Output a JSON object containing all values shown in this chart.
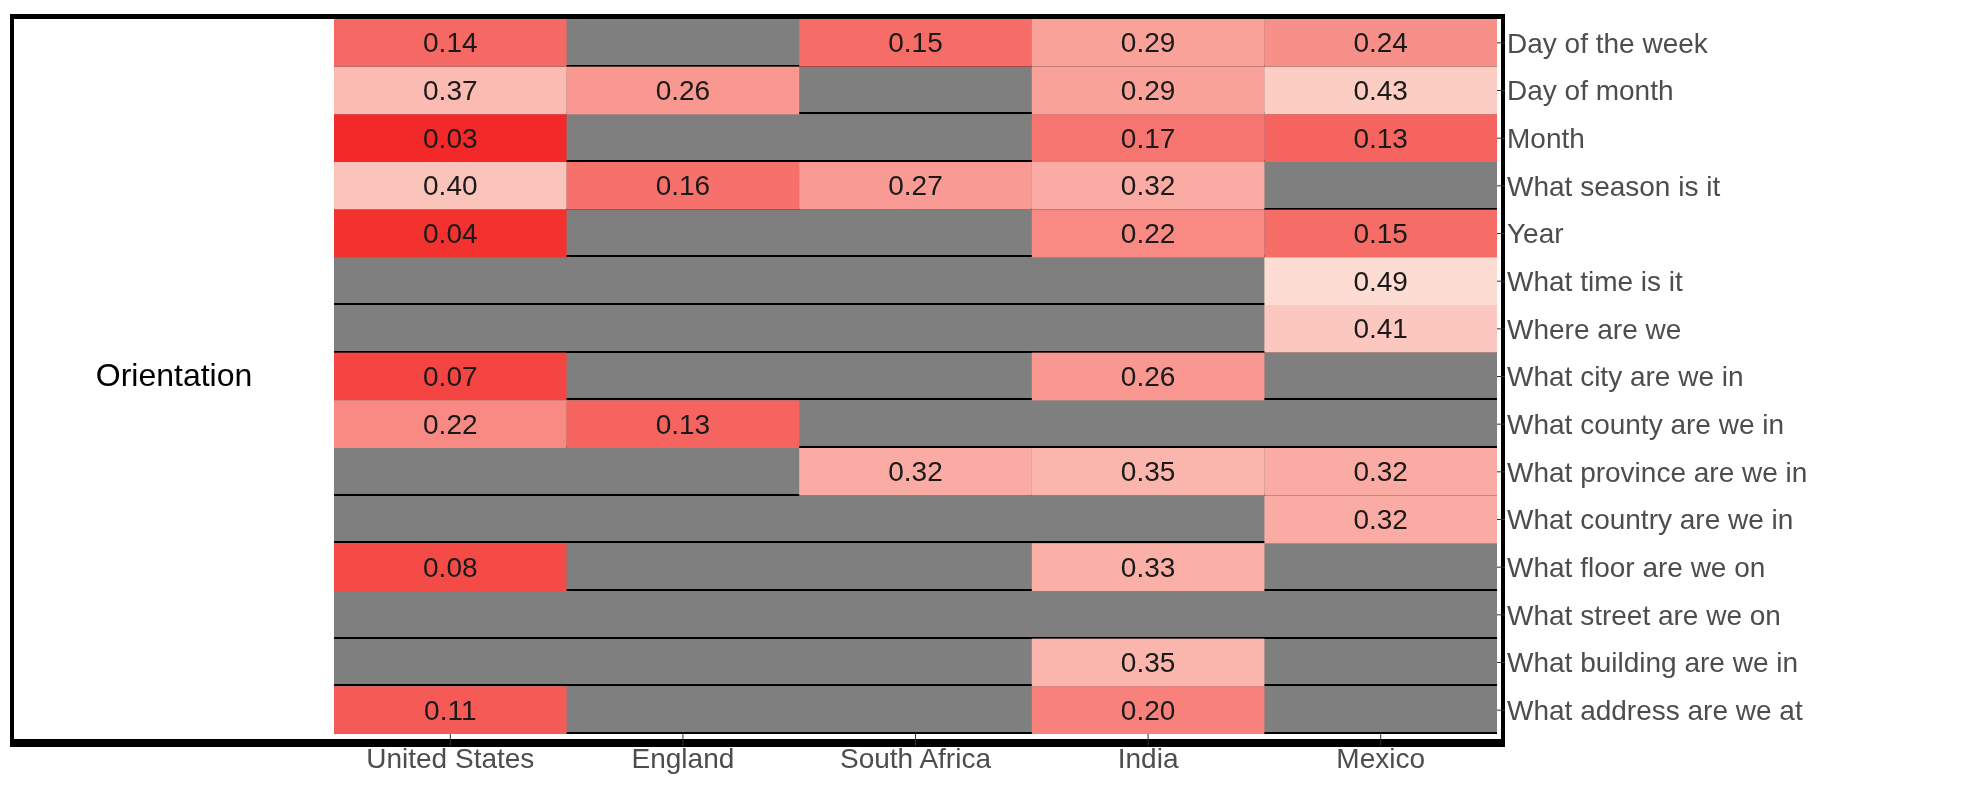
{
  "chart_data": {
    "type": "heatmap",
    "ylabel": "Orientation",
    "categories": [
      "United States",
      "England",
      "South Africa",
      "India",
      "Mexico"
    ],
    "y_categories": [
      "Day of the week",
      "Day of month",
      "Month",
      "What season is it",
      "Year",
      "What time is it",
      "Where are we",
      "What city are we in",
      "What county are we in",
      "What province are we in",
      "What country are we in",
      "What floor are we on",
      "What street are we on",
      "What building are we in",
      "What address are we at"
    ],
    "cells": [
      [
        0.14,
        null,
        0.15,
        0.29,
        0.24
      ],
      [
        0.37,
        0.26,
        null,
        0.29,
        0.43
      ],
      [
        0.03,
        null,
        null,
        0.17,
        0.13
      ],
      [
        0.4,
        0.16,
        0.27,
        0.32,
        null
      ],
      [
        0.04,
        null,
        null,
        0.22,
        0.15
      ],
      [
        null,
        null,
        null,
        null,
        0.49
      ],
      [
        null,
        null,
        null,
        null,
        0.41
      ],
      [
        0.07,
        null,
        null,
        0.26,
        null
      ],
      [
        0.22,
        0.13,
        null,
        null,
        null
      ],
      [
        null,
        null,
        0.32,
        0.35,
        0.32
      ],
      [
        null,
        null,
        null,
        null,
        0.32
      ],
      [
        0.08,
        null,
        null,
        0.33,
        null
      ],
      [
        null,
        null,
        null,
        null,
        null
      ],
      [
        null,
        null,
        null,
        0.35,
        null
      ],
      [
        0.11,
        null,
        null,
        0.2,
        null
      ]
    ],
    "cell_labels": [
      [
        "0.14",
        null,
        "0.15",
        "0.29",
        "0.24"
      ],
      [
        "0.37",
        "0.26",
        null,
        "0.29",
        "0.43"
      ],
      [
        "0.03",
        null,
        null,
        "0.17",
        "0.13"
      ],
      [
        "0.40",
        "0.16",
        "0.27",
        "0.32",
        null
      ],
      [
        "0.04",
        null,
        null,
        "0.22",
        "0.15"
      ],
      [
        null,
        null,
        null,
        null,
        "0.49"
      ],
      [
        null,
        null,
        null,
        null,
        "0.41"
      ],
      [
        "0.07",
        null,
        null,
        "0.26",
        null
      ],
      [
        "0.22",
        "0.13",
        null,
        null,
        null
      ],
      [
        null,
        null,
        "0.32",
        "0.35",
        "0.32"
      ],
      [
        null,
        null,
        null,
        null,
        "0.32"
      ],
      [
        "0.08",
        null,
        null,
        "0.33",
        null
      ],
      [
        null,
        null,
        null,
        null,
        null
      ],
      [
        null,
        null,
        null,
        "0.35",
        null
      ],
      [
        "0.11",
        null,
        null,
        "0.20",
        null
      ]
    ]
  }
}
